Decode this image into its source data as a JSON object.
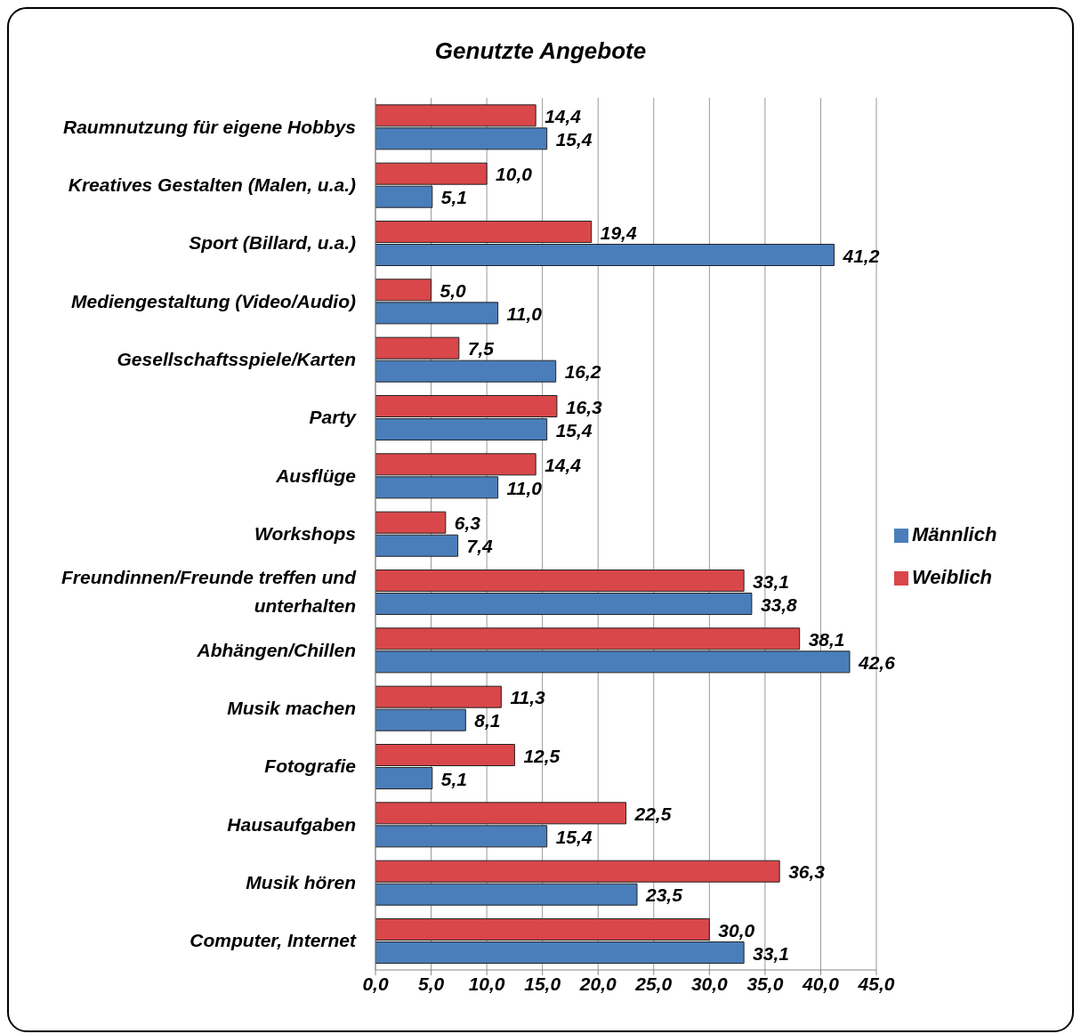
{
  "chart_data": {
    "type": "bar",
    "orientation": "horizontal",
    "title": "Genutzte Angebote",
    "categories": [
      "Raumnutzung für eigene Hobbys",
      "Kreatives Gestalten (Malen, u.a.)",
      "Sport (Billard, u.a.)",
      "Mediengestaltung (Video/Audio)",
      "Gesellschaftsspiele/Karten",
      "Party",
      "Ausflüge",
      "Workshops",
      "Freundinnen/Freunde treffen und unterhalten",
      "Abhängen/Chillen",
      "Musik machen",
      "Fotografie",
      "Hausaufgaben",
      "Musik hören",
      "Computer, Internet"
    ],
    "series": [
      {
        "name": "Weiblich",
        "color": "#d9474a",
        "values": [
          14.4,
          10.0,
          19.4,
          5.0,
          7.5,
          16.3,
          14.4,
          6.3,
          33.1,
          38.1,
          11.3,
          12.5,
          22.5,
          36.3,
          30.0
        ],
        "value_labels": [
          "14,4",
          "10,0",
          "19,4",
          "5,0",
          "7,5",
          "16,3",
          "14,4",
          "6,3",
          "33,1",
          "38,1",
          "11,3",
          "12,5",
          "22,5",
          "36,3",
          "30,0"
        ]
      },
      {
        "name": "Männlich",
        "color": "#4a7ebb",
        "values": [
          15.4,
          5.1,
          41.2,
          11.0,
          16.2,
          15.4,
          11.0,
          7.4,
          33.8,
          42.6,
          8.1,
          5.1,
          15.4,
          23.5,
          33.1
        ],
        "value_labels": [
          "15,4",
          "5,1",
          "41,2",
          "11,0",
          "16,2",
          "15,4",
          "11,0",
          "7,4",
          "33,8",
          "42,6",
          "8,1",
          "5,1",
          "15,4",
          "23,5",
          "33,1"
        ]
      }
    ],
    "xlim": [
      0,
      45
    ],
    "xticks": [
      {
        "value": 0,
        "label": "0,0"
      },
      {
        "value": 5,
        "label": "5,0"
      },
      {
        "value": 10,
        "label": "10,0"
      },
      {
        "value": 15,
        "label": "15,0"
      },
      {
        "value": 20,
        "label": "20,0"
      },
      {
        "value": 25,
        "label": "25,0"
      },
      {
        "value": 30,
        "label": "30,0"
      },
      {
        "value": 35,
        "label": "35,0"
      },
      {
        "value": 40,
        "label": "40,0"
      },
      {
        "value": 45,
        "label": "45,0"
      }
    ],
    "grid": "x",
    "legend": "right"
  }
}
